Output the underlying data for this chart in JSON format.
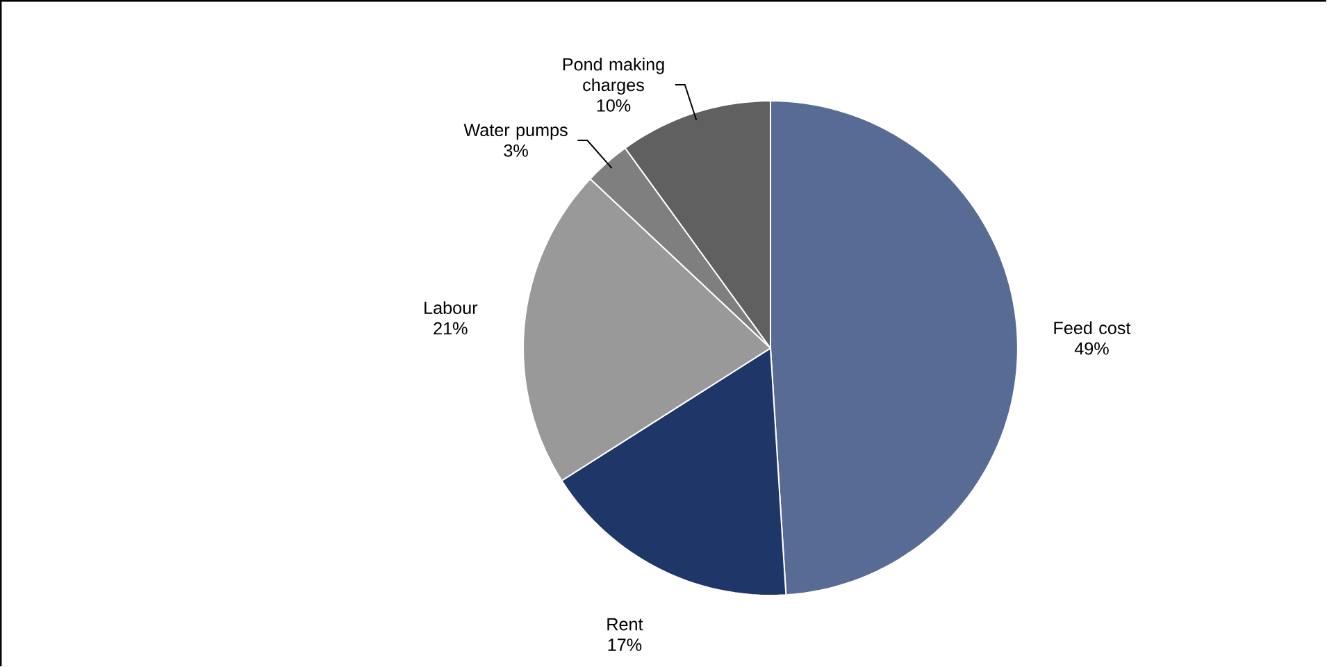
{
  "chart_data": {
    "type": "pie",
    "categories": [
      "Feed cost",
      "Rent",
      "Labour",
      "Water pumps",
      "Pond making charges"
    ],
    "values": [
      49,
      17,
      21,
      3,
      10
    ],
    "value_labels": [
      "49%",
      "17%",
      "21%",
      "3%",
      "10%"
    ],
    "colors": [
      "#586b94",
      "#1f3669",
      "#999999",
      "#7f7f7f",
      "#606060"
    ]
  }
}
